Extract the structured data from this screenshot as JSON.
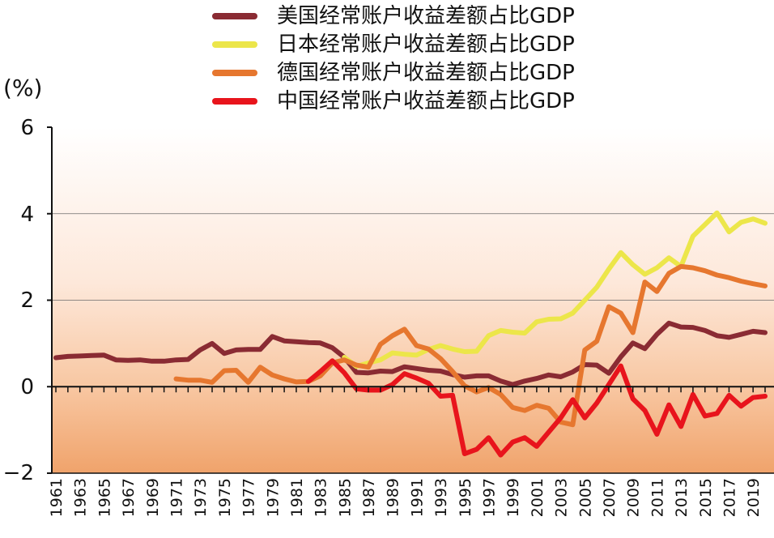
{
  "legend": {
    "usa": "美国经常账户收益差额占比GDP",
    "japan": "日本经常账户收益差额占比GDP",
    "germany": "德国经常账户收益差额占比GDP",
    "china": "中国经常账户收益差额占比GDP"
  },
  "unit_label": "(%)",
  "y_tick_labels": [
    "6",
    "4",
    "2",
    "0",
    "−2"
  ],
  "chart_data": {
    "type": "line",
    "title": "",
    "xlabel": "",
    "ylabel": "(%)",
    "xlim": [
      1961,
      2020
    ],
    "ylim": [
      -2,
      6
    ],
    "yticks": [
      -2,
      0,
      2,
      4,
      6
    ],
    "xtick_labels": [
      "1961",
      "1963",
      "1965",
      "1967",
      "1969",
      "1971",
      "1973",
      "1975",
      "1977",
      "1979",
      "1981",
      "1983",
      "1985",
      "1987",
      "1989",
      "1991",
      "1993",
      "1995",
      "1997",
      "1999",
      "2001",
      "2003",
      "2005",
      "2007",
      "2009",
      "2011",
      "2013",
      "2015",
      "2017",
      "2019"
    ],
    "grid": "horizontal",
    "background": "gradient white to orange",
    "legend_position": "top",
    "series": [
      {
        "name": "美国经常账户收益差额占比GDP",
        "color": "#8a2b33",
        "x": [
          1961,
          1962,
          1963,
          1964,
          1965,
          1966,
          1967,
          1968,
          1969,
          1970,
          1971,
          1972,
          1973,
          1974,
          1975,
          1976,
          1977,
          1978,
          1979,
          1980,
          1981,
          1982,
          1983,
          1984,
          1985,
          1986,
          1987,
          1988,
          1989,
          1990,
          1991,
          1992,
          1993,
          1994,
          1995,
          1996,
          1997,
          1998,
          1999,
          2000,
          2001,
          2002,
          2003,
          2004,
          2005,
          2006,
          2007,
          2008,
          2009,
          2010,
          2011,
          2012,
          2013,
          2014,
          2015,
          2016,
          2017,
          2018,
          2019,
          2020
        ],
        "y": [
          0.67,
          0.7,
          0.71,
          0.72,
          0.73,
          0.62,
          0.61,
          0.62,
          0.59,
          0.59,
          0.62,
          0.63,
          0.85,
          1.0,
          0.77,
          0.85,
          0.86,
          0.86,
          1.16,
          1.06,
          1.04,
          1.02,
          1.01,
          0.9,
          0.68,
          0.33,
          0.32,
          0.36,
          0.35,
          0.46,
          0.42,
          0.38,
          0.36,
          0.28,
          0.22,
          0.25,
          0.25,
          0.13,
          0.05,
          0.13,
          0.19,
          0.27,
          0.23,
          0.34,
          0.51,
          0.5,
          0.31,
          0.69,
          1.01,
          0.88,
          1.21,
          1.47,
          1.38,
          1.37,
          1.3,
          1.18,
          1.14,
          1.21,
          1.28,
          1.25
        ]
      },
      {
        "name": "日本经常账户收益差额占比GDP",
        "color": "#ece64a",
        "x": [
          1985,
          1986,
          1987,
          1988,
          1989,
          1990,
          1991,
          1992,
          1993,
          1994,
          1995,
          1996,
          1997,
          1998,
          1999,
          2000,
          2001,
          2002,
          2003,
          2004,
          2005,
          2006,
          2007,
          2008,
          2009,
          2010,
          2011,
          2012,
          2013,
          2014,
          2015,
          2016,
          2017,
          2018,
          2019,
          2020
        ],
        "y": [
          0.68,
          0.47,
          0.55,
          0.62,
          0.78,
          0.75,
          0.73,
          0.86,
          0.95,
          0.87,
          0.81,
          0.82,
          1.18,
          1.3,
          1.26,
          1.24,
          1.5,
          1.56,
          1.57,
          1.7,
          2.0,
          2.3,
          2.72,
          3.1,
          2.82,
          2.6,
          2.75,
          2.98,
          2.78,
          3.48,
          3.75,
          4.02,
          3.58,
          3.8,
          3.88,
          3.78
        ]
      },
      {
        "name": "德国经常账户收益差额占比GDP",
        "color": "#e6772f",
        "x": [
          1971,
          1972,
          1973,
          1974,
          1975,
          1976,
          1977,
          1978,
          1979,
          1980,
          1981,
          1982,
          1983,
          1984,
          1985,
          1986,
          1987,
          1988,
          1989,
          1990,
          1991,
          1992,
          1993,
          1994,
          1995,
          1996,
          1997,
          1998,
          1999,
          2000,
          2001,
          2002,
          2003,
          2004,
          2005,
          2006,
          2007,
          2008,
          2009,
          2010,
          2011,
          2012,
          2013,
          2014,
          2015,
          2016,
          2017,
          2018,
          2019,
          2020
        ],
        "y": [
          0.18,
          0.15,
          0.15,
          0.1,
          0.37,
          0.38,
          0.1,
          0.45,
          0.27,
          0.18,
          0.11,
          0.12,
          0.25,
          0.55,
          0.62,
          0.5,
          0.45,
          0.98,
          1.18,
          1.33,
          0.95,
          0.87,
          0.65,
          0.35,
          0.02,
          -0.12,
          -0.02,
          -0.18,
          -0.48,
          -0.55,
          -0.43,
          -0.5,
          -0.82,
          -0.88,
          0.85,
          1.05,
          1.85,
          1.7,
          1.25,
          2.42,
          2.2,
          2.62,
          2.78,
          2.75,
          2.68,
          2.58,
          2.52,
          2.44,
          2.38,
          2.33
        ]
      },
      {
        "name": "中国经常账户收益差额占比GDP",
        "color": "#e8141c",
        "x": [
          1982,
          1983,
          1984,
          1985,
          1986,
          1987,
          1988,
          1989,
          1990,
          1991,
          1992,
          1993,
          1994,
          1995,
          1996,
          1997,
          1998,
          1999,
          2000,
          2001,
          2002,
          2003,
          2004,
          2005,
          2006,
          2007,
          2008,
          2009,
          2010,
          2011,
          2012,
          2013,
          2014,
          2015,
          2016,
          2017,
          2018,
          2019,
          2020
        ],
        "y": [
          0.12,
          0.35,
          0.6,
          0.32,
          -0.05,
          -0.08,
          -0.08,
          0.05,
          0.3,
          0.2,
          0.08,
          -0.22,
          -0.2,
          -1.55,
          -1.45,
          -1.18,
          -1.58,
          -1.28,
          -1.18,
          -1.38,
          -1.05,
          -0.72,
          -0.3,
          -0.72,
          -0.38,
          0.05,
          0.48,
          -0.28,
          -0.55,
          -1.1,
          -0.42,
          -0.92,
          -0.18,
          -0.68,
          -0.62,
          -0.2,
          -0.45,
          -0.25,
          -0.22
        ]
      }
    ]
  }
}
